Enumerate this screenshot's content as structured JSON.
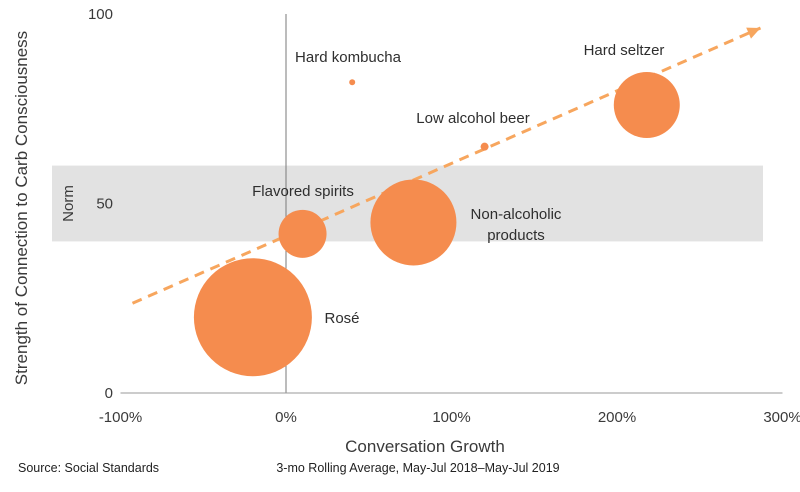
{
  "chart_data": {
    "type": "scatter",
    "xlabel": "Conversation Growth",
    "ylabel": "Strength of Connection to Carb Consciousness",
    "xlim": [
      -100,
      300
    ],
    "ylim": [
      0,
      100
    ],
    "x_ticks": [
      "-100%",
      "0%",
      "100%",
      "200%",
      "300%"
    ],
    "x_tick_values": [
      -100,
      0,
      100,
      200,
      300
    ],
    "y_ticks": [
      "0",
      "50",
      "100"
    ],
    "y_tick_values": [
      0,
      50,
      100
    ],
    "norm_band": {
      "label": "Norm",
      "y_range": [
        40,
        60
      ]
    },
    "trendline": {
      "x": [
        -100,
        300
      ],
      "y": [
        25,
        95
      ]
    },
    "points": [
      {
        "label": "Hard kombucha",
        "x": 40,
        "y": 82,
        "size": 3
      },
      {
        "label": "Hard seltzer",
        "x": 218,
        "y": 76,
        "size": 33
      },
      {
        "label": "Low alcohol beer",
        "x": 120,
        "y": 65,
        "size": 4
      },
      {
        "label": "Flavored spirits",
        "x": 10,
        "y": 42,
        "size": 24
      },
      {
        "label": "Non-alcoholic products",
        "label_lines": [
          "Non-alcoholic",
          "products"
        ],
        "x": 77,
        "y": 45,
        "size": 43
      },
      {
        "label": "Rosé",
        "x": -20,
        "y": 20,
        "size": 59
      }
    ],
    "bubble_color": "#f58c4e",
    "trend_color": "#f7a65e",
    "band_color": "#e2e2e2"
  },
  "footer": {
    "source": "Source: Social Standards",
    "period": "3-mo Rolling Average, May-Jul 2018–May-Jul 2019"
  }
}
